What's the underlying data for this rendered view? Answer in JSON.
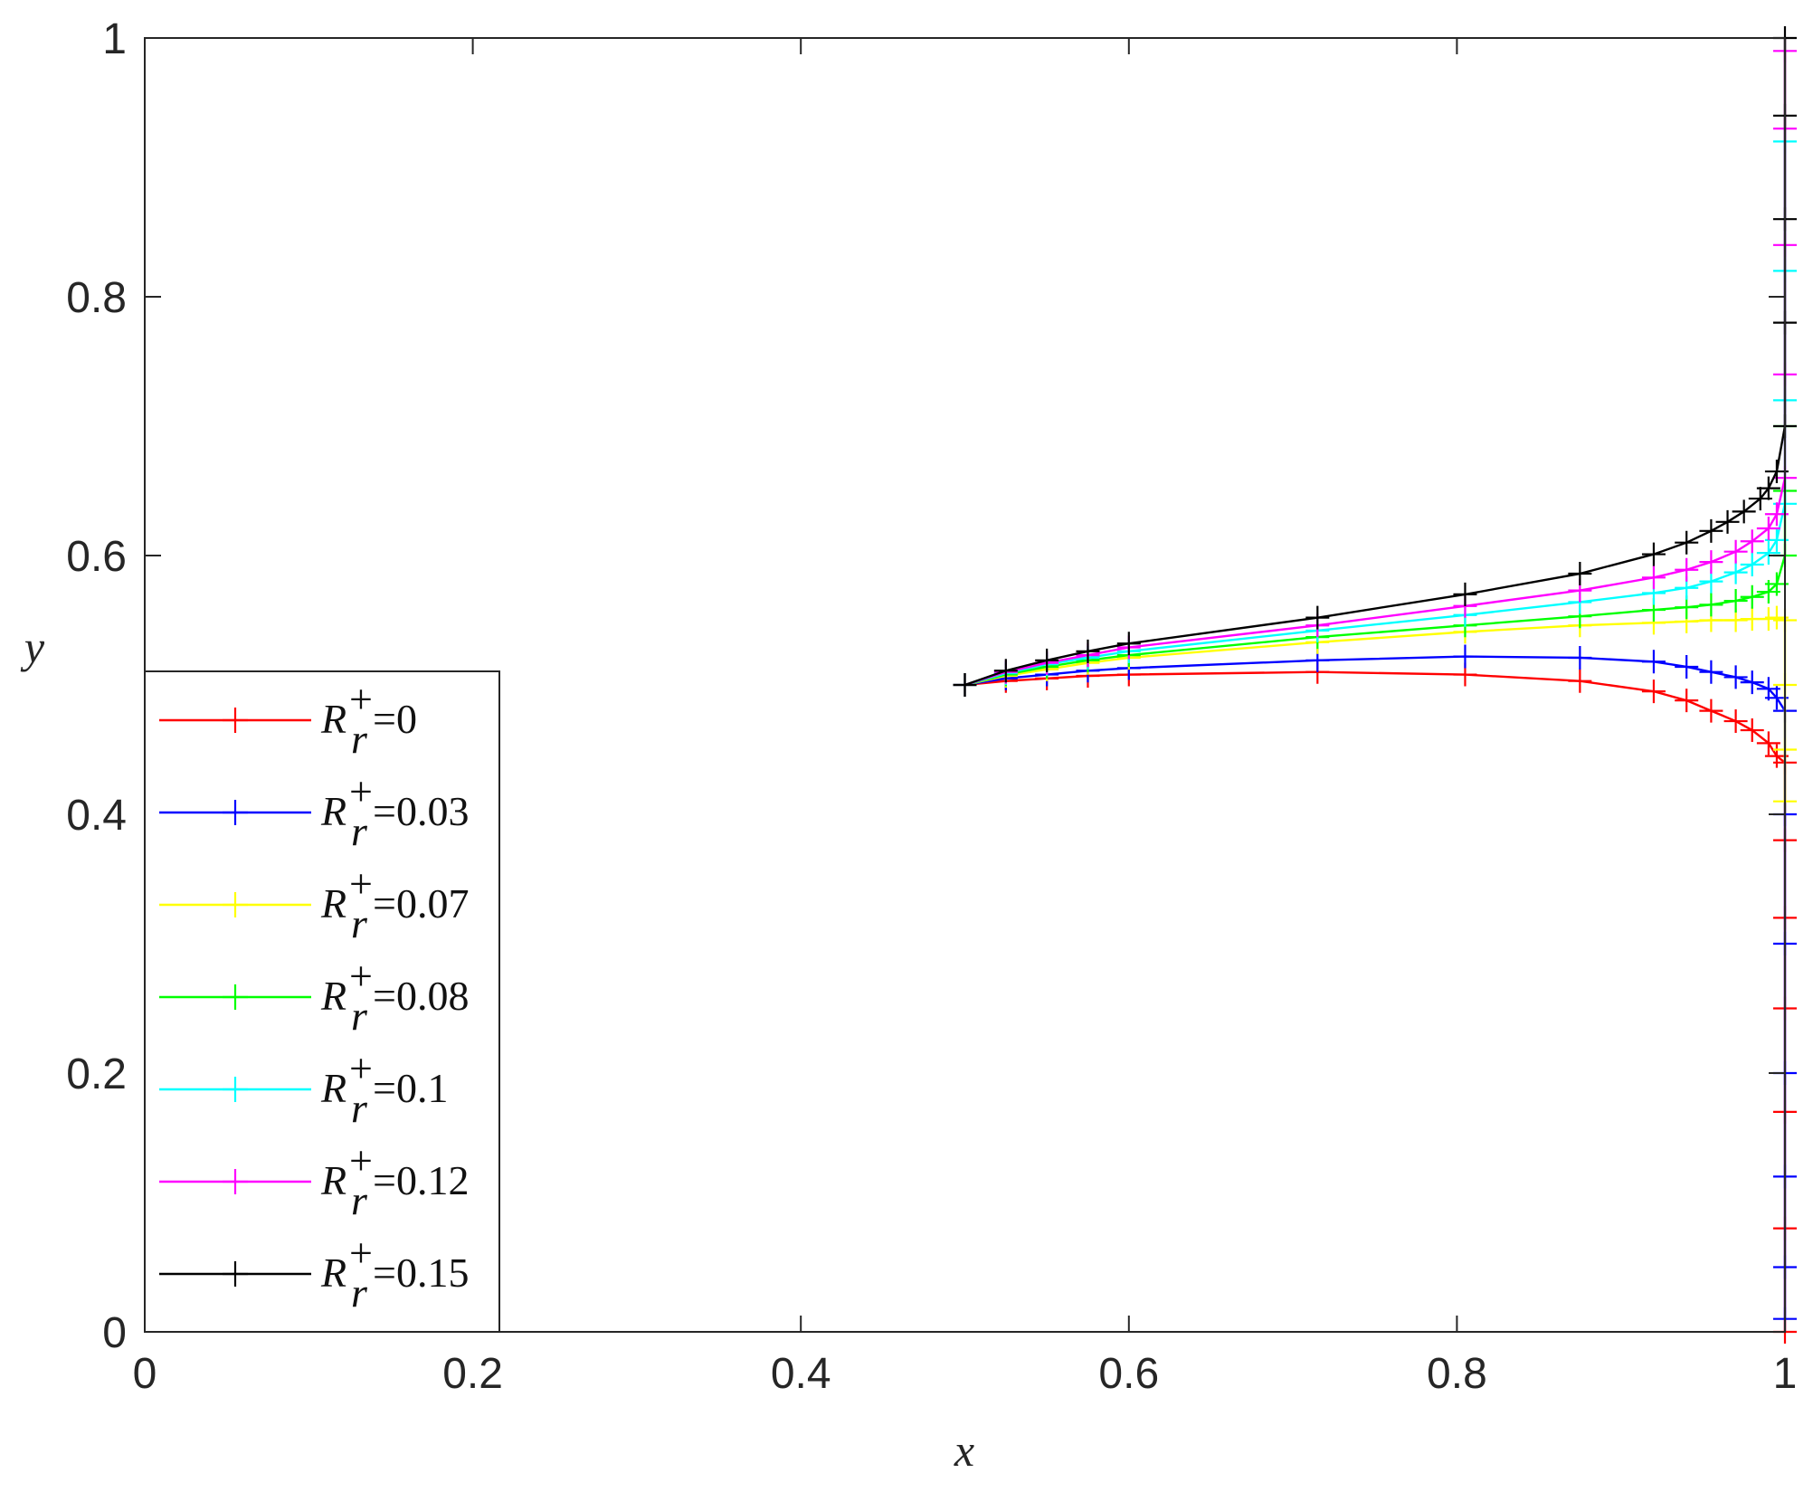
{
  "chart_data": {
    "type": "line",
    "title": "",
    "xlabel": "x",
    "ylabel": "y",
    "xlim": [
      0,
      1
    ],
    "ylim": [
      0,
      1
    ],
    "xticks": [
      0,
      0.2,
      0.4,
      0.6,
      0.8,
      1
    ],
    "yticks": [
      0,
      0.2,
      0.4,
      0.6,
      0.8,
      1
    ],
    "xtick_labels": [
      "0",
      "0.2",
      "0.4",
      "0.6",
      "0.8",
      "1"
    ],
    "ytick_labels": [
      "0",
      "0.2",
      "0.4",
      "0.6",
      "0.8",
      "1"
    ],
    "grid": false,
    "legend_position": "bottom-left",
    "marker": "+",
    "series": [
      {
        "name": "R_r^+=0",
        "legend_symbol": "R",
        "legend_sup": "+",
        "legend_sub": "r",
        "legend_value": "=0",
        "color": "#ff0000",
        "x": [
          0.5,
          0.525,
          0.55,
          0.575,
          0.6,
          0.715,
          0.805,
          0.875,
          0.92,
          0.94,
          0.955,
          0.97,
          0.98,
          0.99,
          0.995,
          1,
          1,
          1,
          1,
          1,
          1,
          1
        ],
        "y": [
          0.5,
          0.503,
          0.505,
          0.507,
          0.508,
          0.51,
          0.508,
          0.503,
          0.495,
          0.488,
          0.48,
          0.472,
          0.465,
          0.455,
          0.445,
          0.44,
          0.38,
          0.32,
          0.25,
          0.17,
          0.08,
          0.0
        ]
      },
      {
        "name": "R_r^+=0.03",
        "legend_symbol": "R",
        "legend_sup": "+",
        "legend_sub": "r",
        "legend_value": "=0.03",
        "color": "#0000ff",
        "x": [
          0.5,
          0.525,
          0.55,
          0.575,
          0.6,
          0.715,
          0.805,
          0.875,
          0.92,
          0.94,
          0.955,
          0.97,
          0.98,
          0.99,
          0.995,
          1,
          1,
          1,
          1,
          1,
          1,
          1
        ],
        "y": [
          0.5,
          0.505,
          0.508,
          0.511,
          0.513,
          0.519,
          0.522,
          0.521,
          0.518,
          0.514,
          0.51,
          0.506,
          0.502,
          0.497,
          0.49,
          0.48,
          0.4,
          0.3,
          0.2,
          0.12,
          0.05,
          0.01
        ]
      },
      {
        "name": "R_r^+=0.07",
        "legend_symbol": "R",
        "legend_sup": "+",
        "legend_sub": "r",
        "legend_value": "=0.07",
        "color": "#ffff00",
        "x": [
          0.5,
          0.525,
          0.55,
          0.575,
          0.6,
          0.715,
          0.805,
          0.875,
          0.92,
          0.94,
          0.955,
          0.97,
          0.98,
          0.99,
          0.995,
          1,
          1,
          1,
          1
        ],
        "y": [
          0.5,
          0.507,
          0.512,
          0.517,
          0.521,
          0.533,
          0.541,
          0.546,
          0.548,
          0.549,
          0.55,
          0.55,
          0.551,
          0.551,
          0.552,
          0.55,
          0.5,
          0.45,
          0.41
        ]
      },
      {
        "name": "R_r^+=0.08",
        "legend_symbol": "R",
        "legend_sup": "+",
        "legend_sub": "r",
        "legend_value": "=0.08",
        "color": "#00ff00",
        "x": [
          0.5,
          0.525,
          0.55,
          0.575,
          0.6,
          0.715,
          0.805,
          0.875,
          0.92,
          0.94,
          0.955,
          0.97,
          0.98,
          0.99,
          0.995,
          1,
          1,
          1
        ],
        "y": [
          0.5,
          0.508,
          0.514,
          0.519,
          0.523,
          0.537,
          0.546,
          0.553,
          0.558,
          0.56,
          0.562,
          0.565,
          0.568,
          0.572,
          0.578,
          0.6,
          0.65,
          0.7
        ]
      },
      {
        "name": "R_r^+=0.1",
        "legend_symbol": "R",
        "legend_sup": "+",
        "legend_sub": "r",
        "legend_value": "=0.1",
        "color": "#00ffff",
        "x": [
          0.5,
          0.525,
          0.55,
          0.575,
          0.6,
          0.715,
          0.805,
          0.875,
          0.92,
          0.94,
          0.955,
          0.97,
          0.98,
          0.99,
          0.995,
          1,
          1,
          1,
          1
        ],
        "y": [
          0.5,
          0.509,
          0.516,
          0.521,
          0.526,
          0.542,
          0.554,
          0.564,
          0.571,
          0.575,
          0.58,
          0.587,
          0.593,
          0.602,
          0.612,
          0.64,
          0.72,
          0.82,
          0.92
        ]
      },
      {
        "name": "R_r^+=0.12",
        "legend_symbol": "R",
        "legend_sup": "+",
        "legend_sub": "r",
        "legend_value": "=0.12",
        "color": "#ff00ff",
        "x": [
          0.5,
          0.525,
          0.55,
          0.575,
          0.6,
          0.715,
          0.805,
          0.875,
          0.92,
          0.94,
          0.955,
          0.97,
          0.98,
          0.99,
          0.995,
          1,
          1,
          1,
          1,
          1
        ],
        "y": [
          0.5,
          0.51,
          0.517,
          0.523,
          0.529,
          0.546,
          0.561,
          0.573,
          0.583,
          0.589,
          0.595,
          0.603,
          0.611,
          0.621,
          0.632,
          0.66,
          0.74,
          0.84,
          0.93,
          0.99
        ]
      },
      {
        "name": "R_r^+=0.15",
        "legend_symbol": "R",
        "legend_sup": "+",
        "legend_sub": "r",
        "legend_value": "=0.15",
        "color": "#000000",
        "x": [
          0.5,
          0.525,
          0.55,
          0.575,
          0.6,
          0.715,
          0.805,
          0.875,
          0.92,
          0.94,
          0.955,
          0.965,
          0.975,
          0.985,
          0.99,
          0.995,
          1,
          1,
          1,
          1,
          1
        ],
        "y": [
          0.5,
          0.511,
          0.519,
          0.526,
          0.532,
          0.552,
          0.57,
          0.586,
          0.601,
          0.61,
          0.619,
          0.626,
          0.634,
          0.644,
          0.652,
          0.665,
          0.7,
          0.78,
          0.86,
          0.94,
          1.0
        ]
      }
    ]
  }
}
